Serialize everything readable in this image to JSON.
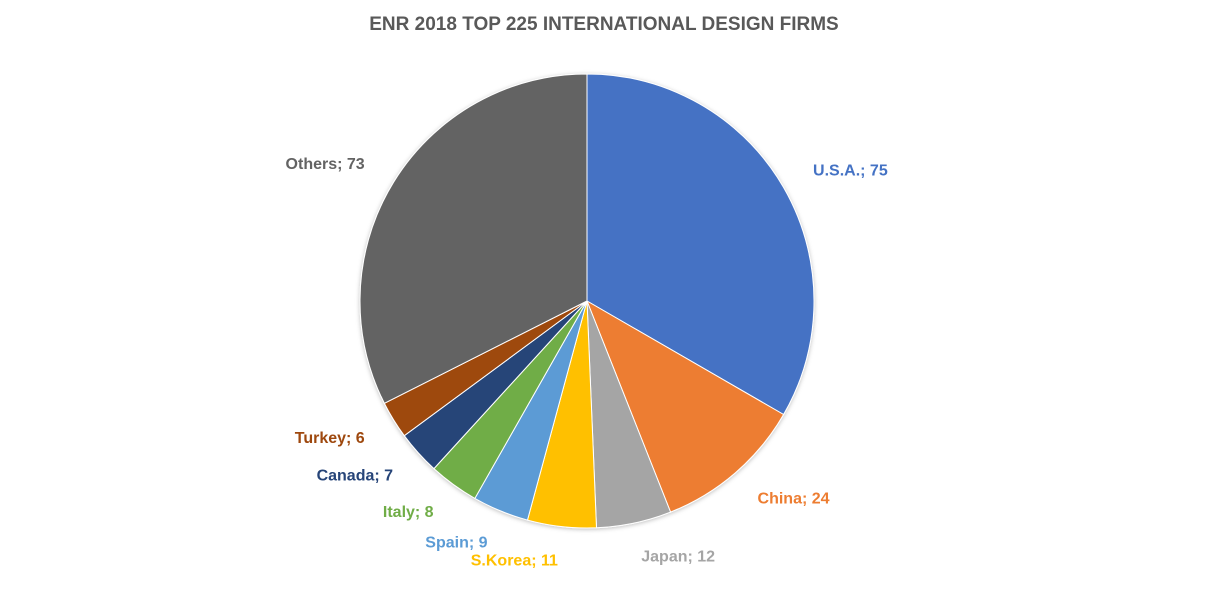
{
  "chart_data": {
    "type": "pie",
    "title": "ENR 2018 TOP 225 INTERNATIONAL DESIGN FIRMS",
    "slices": [
      {
        "label": "U.S.A.",
        "value": 75,
        "color": "#4472C4"
      },
      {
        "label": "China",
        "value": 24,
        "color": "#ED7D31"
      },
      {
        "label": "Japan",
        "value": 12,
        "color": "#A5A5A5"
      },
      {
        "label": "S.Korea",
        "value": 11,
        "color": "#FFC000"
      },
      {
        "label": "Spain",
        "value": 9,
        "color": "#5B9BD5"
      },
      {
        "label": "Italy",
        "value": 8,
        "color": "#70AD47"
      },
      {
        "label": "Canada",
        "value": 7,
        "color": "#264478"
      },
      {
        "label": "Turkey",
        "value": 6,
        "color": "#9E480E"
      },
      {
        "label": "Others",
        "value": 73,
        "color": "#636363"
      }
    ],
    "legend": "none",
    "data_labels": "outside, category; value"
  }
}
